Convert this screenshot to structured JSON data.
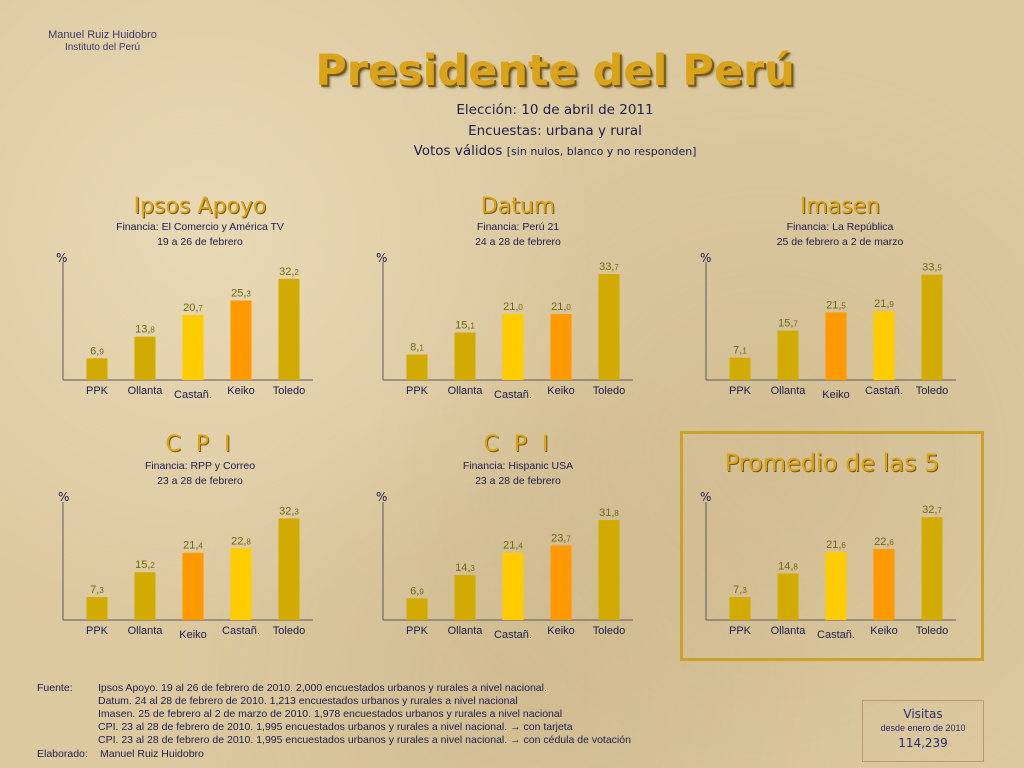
{
  "header": {
    "author_name": "Manuel Ruiz Huidobro",
    "author_institution": "Instituto del Perú",
    "title": "Presidente del Perú",
    "election": "Elección:  10 de abril de 2011",
    "surveys": "Encuestas: urbana y rural",
    "valid_votes": "Votos válidos",
    "valid_votes_note": "[sin nulos, blanco y no responden]"
  },
  "colors": {
    "gold": "#d2ab00",
    "yellow": "#ffcc00",
    "orange": "#ff9900",
    "title": "#d9a419"
  },
  "chart_data": [
    {
      "type": "bar",
      "title": "Ipsos Apoyo",
      "financing": "Financia:  El Comercio y América TV",
      "dates": "19 a 26 de febrero",
      "ylabel": "%",
      "ylim": [
        0,
        35
      ],
      "categories": [
        "PPK",
        "Ollanta",
        "Castañ.",
        "Keiko",
        "Toledo"
      ],
      "values": [
        6.9,
        13.8,
        20.7,
        25.3,
        32.2
      ],
      "value_labels": [
        [
          "6,",
          "9"
        ],
        [
          "13,",
          "8"
        ],
        [
          "20,",
          "7"
        ],
        [
          "25,",
          "3"
        ],
        [
          "32,",
          "2"
        ]
      ],
      "bar_colors": [
        "#d2ab00",
        "#d2ab00",
        "#ffcc00",
        "#ff9900",
        "#d2ab00"
      ]
    },
    {
      "type": "bar",
      "title": "Datum",
      "financing": "Financia:  Perú 21",
      "dates": "24 a 28 de febrero",
      "ylabel": "%",
      "ylim": [
        0,
        35
      ],
      "categories": [
        "PPK",
        "Ollanta",
        "Castañ.",
        "Keiko",
        "Toledo"
      ],
      "values": [
        8.1,
        15.1,
        21.0,
        21.0,
        33.7
      ],
      "value_labels": [
        [
          "8,",
          "1"
        ],
        [
          "15,",
          "1"
        ],
        [
          "21,",
          "0"
        ],
        [
          "21,",
          "0"
        ],
        [
          "33,",
          "7"
        ]
      ],
      "bar_colors": [
        "#d2ab00",
        "#d2ab00",
        "#ffcc00",
        "#ff9900",
        "#d2ab00"
      ]
    },
    {
      "type": "bar",
      "title": "Imasen",
      "financing": "Financia:  La República",
      "dates": "25 de febrero a 2 de marzo",
      "ylabel": "%",
      "ylim": [
        0,
        35
      ],
      "categories": [
        "PPK",
        "Ollanta",
        "Keiko",
        "Castañ.",
        "Toledo"
      ],
      "values": [
        7.1,
        15.7,
        21.5,
        21.9,
        33.5
      ],
      "value_labels": [
        [
          "7,",
          "1"
        ],
        [
          "15,",
          "7"
        ],
        [
          "21,",
          "5"
        ],
        [
          "21,",
          "9"
        ],
        [
          "33,",
          "5"
        ]
      ],
      "bar_colors": [
        "#d2ab00",
        "#d2ab00",
        "#ff9900",
        "#ffcc00",
        "#d2ab00"
      ]
    },
    {
      "type": "bar",
      "title": "C P I",
      "financing": "Financia:  RPP y Correo",
      "dates": "23 a 28 de febrero",
      "ylabel": "%",
      "ylim": [
        0,
        35
      ],
      "categories": [
        "PPK",
        "Ollanta",
        "Keiko",
        "Castañ.",
        "Toledo"
      ],
      "values": [
        7.3,
        15.2,
        21.4,
        22.8,
        32.3
      ],
      "value_labels": [
        [
          "7,",
          "3"
        ],
        [
          "15,",
          "2"
        ],
        [
          "21,",
          "4"
        ],
        [
          "22,",
          "8"
        ],
        [
          "32,",
          "3"
        ]
      ],
      "bar_colors": [
        "#d2ab00",
        "#d2ab00",
        "#ff9900",
        "#ffcc00",
        "#d2ab00"
      ]
    },
    {
      "type": "bar",
      "title": "C P I",
      "financing": "Financia:  Hispanic  USA",
      "dates": "23 a 28 de febrero",
      "ylabel": "%",
      "ylim": [
        0,
        35
      ],
      "categories": [
        "PPK",
        "Ollanta",
        "Castañ.",
        "Keiko",
        "Toledo"
      ],
      "values": [
        6.9,
        14.3,
        21.4,
        23.7,
        31.8
      ],
      "value_labels": [
        [
          "6,",
          "9"
        ],
        [
          "14,",
          "3"
        ],
        [
          "21,",
          "4"
        ],
        [
          "23,",
          "7"
        ],
        [
          "31,",
          "8"
        ]
      ],
      "bar_colors": [
        "#d2ab00",
        "#d2ab00",
        "#ffcc00",
        "#ff9900",
        "#d2ab00"
      ]
    },
    {
      "type": "bar",
      "title": "Promedio de las 5",
      "ylabel": "%",
      "ylim": [
        0,
        35
      ],
      "categories": [
        "PPK",
        "Ollanta",
        "Castañ.",
        "Keiko",
        "Toledo"
      ],
      "values": [
        7.3,
        14.8,
        21.6,
        22.6,
        32.7
      ],
      "value_labels": [
        [
          "7,",
          "3"
        ],
        [
          "14,",
          "8"
        ],
        [
          "21,",
          "6"
        ],
        [
          "22,",
          "6"
        ],
        [
          "32,",
          "7"
        ]
      ],
      "bar_colors": [
        "#d2ab00",
        "#d2ab00",
        "#ffcc00",
        "#ff9900",
        "#d2ab00"
      ]
    }
  ],
  "footer": {
    "source_label": "Fuente:",
    "sources": [
      "Ipsos Apoyo.   19 al 26 de febrero de 2010. 2,000 encuestados urbanos y rurales a nivel nacional.",
      "Datum.  24 al 28 de febrero de 2010. 1,213 encuestados urbanos y rurales a nivel nacional",
      "Imasen.  25 de febrero al 2 de marzo de 2010. 1,978 encuestados urbanos y rurales a nivel nacional",
      "CPI. 23 al 28 de febrero de 2010. 1,995 encuestados urbanos y rurales a nivel nacional.  →  con   tarjeta",
      "CPI. 23 al 28 de febrero de 2010. 1,995 encuestados urbanos y rurales a nivel nacional.  →  con   cédula de votación"
    ],
    "prepared_label": "Elaborado:",
    "prepared_by": "Manuel Ruiz Huidobro"
  },
  "visits": {
    "title": "Visitas",
    "since": "desde enero de  2010",
    "count": "114,239"
  }
}
